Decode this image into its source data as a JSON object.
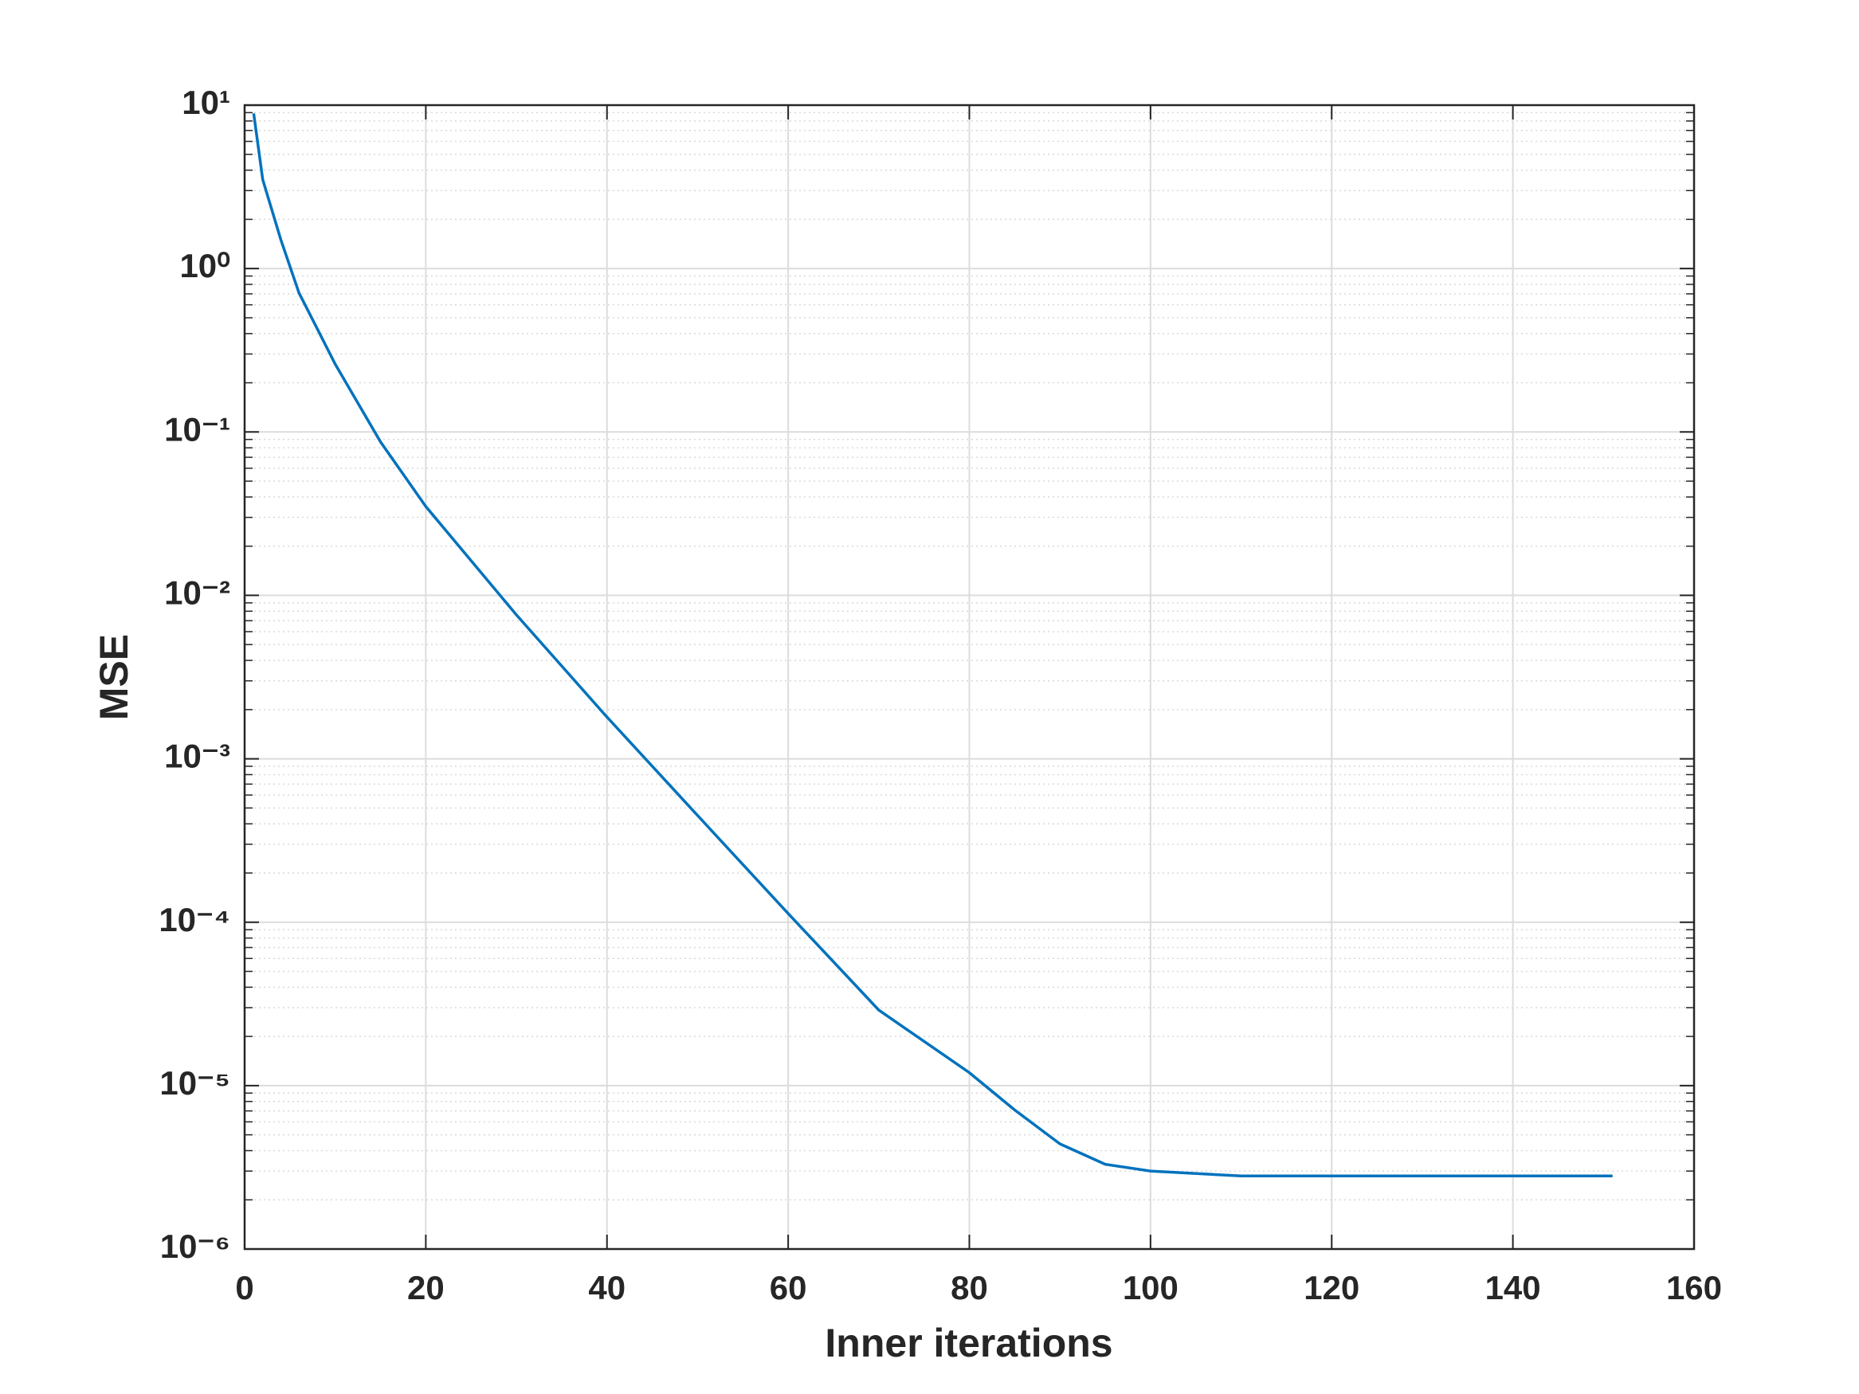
{
  "chart_data": {
    "type": "line",
    "xlabel": "Inner iterations",
    "ylabel": "MSE",
    "x": [
      1,
      2,
      4,
      6,
      8,
      10,
      15,
      20,
      30,
      40,
      50,
      60,
      70,
      80,
      85,
      90,
      95,
      100,
      110,
      120,
      130,
      140,
      151
    ],
    "series": [
      {
        "color": "#0072bd",
        "values": [
          8.9,
          3.5,
          1.5,
          0.71,
          0.43,
          0.26,
          0.087,
          0.035,
          0.0076,
          0.0018,
          0.00045,
          0.000113,
          2.9e-05,
          1.2e-05,
          7.1e-06,
          4.4e-06,
          3.3e-06,
          3e-06,
          2.8e-06,
          2.8e-06,
          2.8e-06,
          2.8e-06,
          2.8e-06
        ]
      }
    ],
    "xlim": [
      0,
      160
    ],
    "xticks": [
      0,
      20,
      40,
      60,
      80,
      100,
      120,
      140,
      160
    ],
    "ylim": [
      1e-06,
      10
    ],
    "ylog": true,
    "yticks": [
      {
        "value": 1e-06,
        "label": "10⁻⁶"
      },
      {
        "value": 1e-05,
        "label": "10⁻⁵"
      },
      {
        "value": 0.0001,
        "label": "10⁻⁴"
      },
      {
        "value": 0.001,
        "label": "10⁻³"
      },
      {
        "value": 0.01,
        "label": "10⁻²"
      },
      {
        "value": 0.1,
        "label": "10⁻¹"
      },
      {
        "value": 1,
        "label": "10⁰"
      },
      {
        "value": 10,
        "label": "10¹"
      }
    ],
    "grid": true,
    "minor_grid": true
  }
}
